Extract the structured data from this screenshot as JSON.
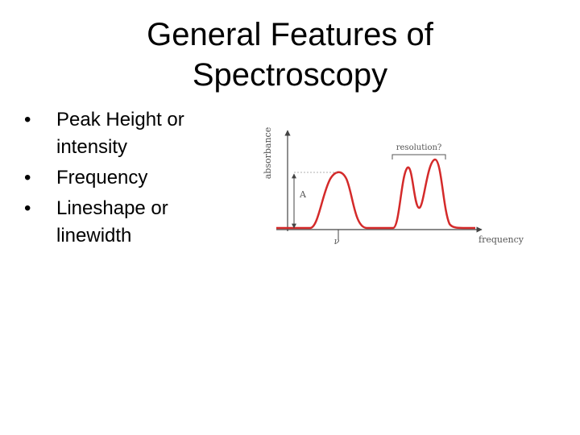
{
  "title": {
    "lines": [
      "General Features of",
      "Spectroscopy"
    ]
  },
  "bullets": [
    "Peak Height or intensity",
    "Frequency",
    "Lineshape or linewidth"
  ],
  "figure": {
    "y_axis_label": "absorbance",
    "x_axis_label": "frequency",
    "bracket_label": "resolution?",
    "height_label": "A",
    "peak_label": "ν"
  }
}
